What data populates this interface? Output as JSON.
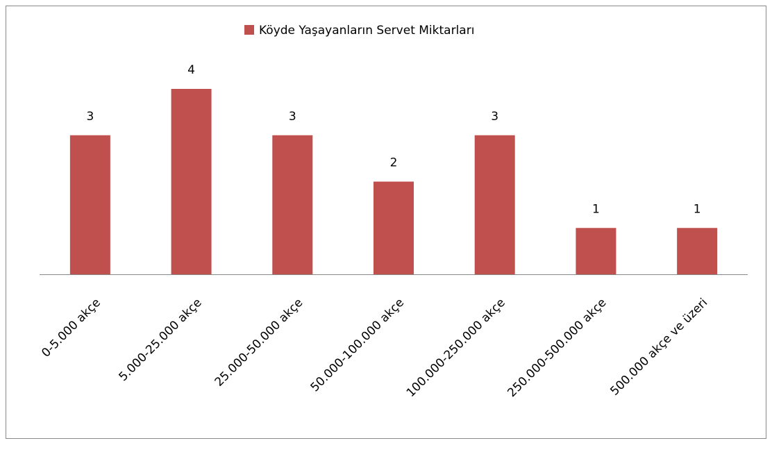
{
  "chart_data": {
    "type": "bar",
    "categories": [
      "0-5.000 akçe",
      "5.000-25.000 akçe",
      "25.000-50.000 akçe",
      "50.000-100.000 akçe",
      "100.000-250.000 akçe",
      "250.000-500.000 akçe",
      "500.000 akçe ve üzeri"
    ],
    "series": [
      {
        "name": "Köyde Yaşayanların Servet Miktarları",
        "color": "#c0504d",
        "values": [
          3,
          4,
          3,
          2,
          3,
          1,
          1
        ]
      }
    ],
    "legend": "top"
  }
}
